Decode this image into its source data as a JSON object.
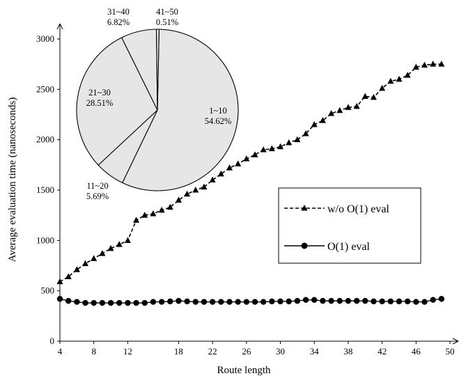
{
  "chart_data": [
    {
      "type": "line",
      "title": "",
      "xlabel": "Route length",
      "ylabel": "Average evaluation time (nanoseconds)",
      "xlim": [
        4,
        50
      ],
      "ylim": [
        0,
        3000
      ],
      "x_ticks": [
        4,
        8,
        12,
        18,
        22,
        26,
        30,
        34,
        38,
        42,
        46,
        50
      ],
      "y_ticks": [
        0,
        500,
        1000,
        1500,
        2000,
        2500,
        3000
      ],
      "grid": false,
      "legend_position": "right",
      "x": [
        4,
        5,
        6,
        7,
        8,
        9,
        10,
        11,
        12,
        13,
        14,
        15,
        16,
        17,
        18,
        19,
        20,
        21,
        22,
        23,
        24,
        25,
        26,
        27,
        28,
        29,
        30,
        31,
        32,
        33,
        34,
        35,
        36,
        37,
        38,
        39,
        40,
        41,
        42,
        43,
        44,
        45,
        46,
        47,
        48,
        49
      ],
      "series": [
        {
          "name": "w/o O(1) eval",
          "marker": "triangle",
          "line_style": "dashed",
          "values": [
            590,
            640,
            710,
            770,
            820,
            870,
            920,
            960,
            1000,
            1200,
            1250,
            1265,
            1300,
            1330,
            1400,
            1460,
            1500,
            1530,
            1600,
            1660,
            1720,
            1760,
            1810,
            1850,
            1900,
            1910,
            1930,
            1970,
            2000,
            2060,
            2150,
            2190,
            2260,
            2290,
            2320,
            2330,
            2430,
            2420,
            2510,
            2580,
            2600,
            2640,
            2720,
            2740,
            2750,
            2750
          ]
        },
        {
          "name": "O(1) eval",
          "marker": "circle",
          "line_style": "solid",
          "values": [
            420,
            400,
            390,
            380,
            380,
            380,
            380,
            380,
            380,
            380,
            380,
            390,
            390,
            395,
            400,
            395,
            390,
            390,
            390,
            390,
            390,
            390,
            390,
            390,
            390,
            395,
            395,
            395,
            400,
            410,
            410,
            400,
            400,
            400,
            400,
            400,
            400,
            395,
            395,
            395,
            395,
            395,
            390,
            390,
            410,
            420
          ]
        }
      ]
    },
    {
      "type": "pie",
      "slices": [
        {
          "label": "1~10",
          "value": 54.62,
          "percent_label": "54.62%"
        },
        {
          "label": "11~20",
          "value": 5.69,
          "percent_label": "5.69%"
        },
        {
          "label": "21~30",
          "value": 28.51,
          "percent_label": "28.51%"
        },
        {
          "label": "31~40",
          "value": 6.82,
          "percent_label": "6.82%"
        },
        {
          "label": "41~50",
          "value": 0.51,
          "percent_label": "0.51%"
        }
      ],
      "fill_color": "#e6e6e6",
      "edge_color": "#000000"
    }
  ]
}
